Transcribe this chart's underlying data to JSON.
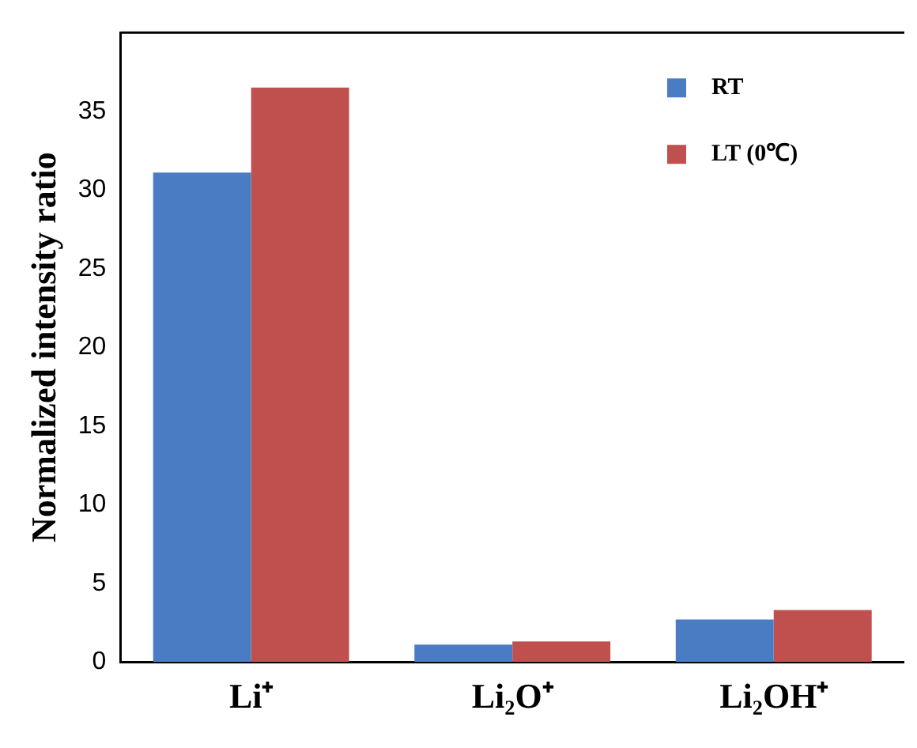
{
  "chart_data": {
    "type": "bar",
    "ylabel": "Normalized intensity ratio",
    "categories": [
      "Li⁺",
      "Li₂O⁺",
      "Li₂OH⁺"
    ],
    "series": [
      {
        "name": "RT",
        "color": "#4a7cc4",
        "values": [
          31.1,
          1.1,
          2.7
        ]
      },
      {
        "name": "LT (0℃)",
        "color": "#c0504d",
        "values": [
          36.5,
          1.3,
          3.3
        ]
      }
    ],
    "ylim": [
      0,
      40
    ],
    "yticks": [
      0,
      5,
      10,
      15,
      20,
      25,
      30,
      35
    ],
    "grid": false,
    "legend": "top right"
  }
}
